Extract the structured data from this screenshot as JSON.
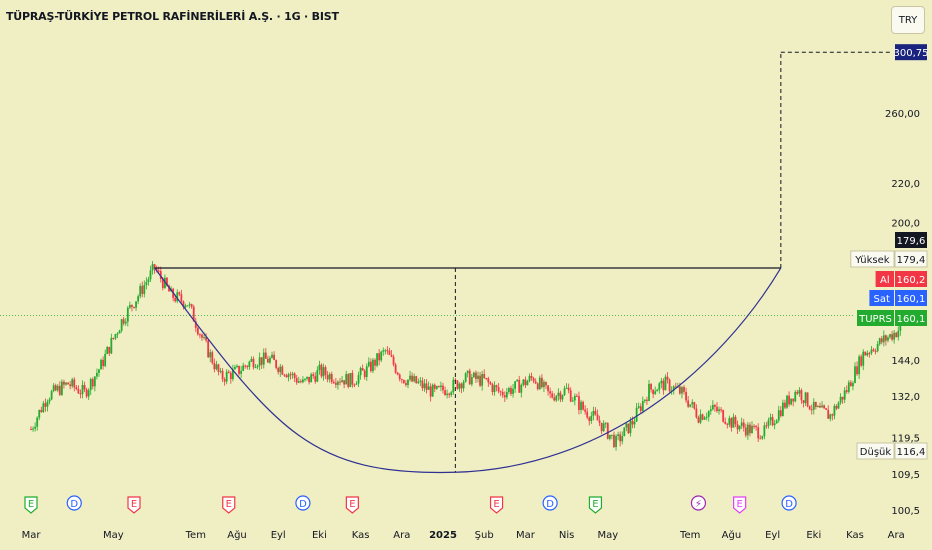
{
  "header": {
    "title": "TÜPRAŞ-TÜRKİYE PETROL RAFİNERİLERİ A.Ş. · 1G · BIST",
    "currency": "TRY"
  },
  "chart_data": {
    "type": "candlestick",
    "price_axis": {
      "scale": "log",
      "ticks": [
        "300,75",
        "260,00",
        "220,0",
        "200,0",
        "179,6",
        "179,4",
        "160,2",
        "160,1",
        "160,1",
        "144,0",
        "132,0",
        "119,5",
        "116,4",
        "109,5",
        "100,5"
      ],
      "tick_values": [
        260,
        220,
        200,
        144,
        132,
        119.5,
        109.5,
        100.5
      ],
      "tick_labels": [
        "260,00",
        "220,0",
        "200,0",
        "144,0",
        "132,0",
        "119,5",
        "109,5",
        "100,5"
      ]
    },
    "time_axis": {
      "labels": [
        "Mar",
        "May",
        "Tem",
        "Ağu",
        "Eyl",
        "Eki",
        "Kas",
        "Ara",
        "2025",
        "Şub",
        "Mar",
        "Nis",
        "May",
        "Tem",
        "Ağu",
        "Eyl",
        "Eki",
        "Kas",
        "Ara"
      ]
    },
    "price_labels": [
      {
        "label": "",
        "value": "300,75",
        "price": 300.75,
        "color": "#1a237e"
      },
      {
        "label": "",
        "value": "179,6",
        "price": 179.6,
        "color": "#131722"
      },
      {
        "label": "Yüksek",
        "value": "179,4",
        "price": 179.4,
        "color": "#f0eec3"
      },
      {
        "label": "Al",
        "value": "160,2",
        "price": 160.2,
        "color": "#f23645"
      },
      {
        "label": "Sat",
        "value": "160,1",
        "price": 160.1,
        "color": "#2962ff"
      },
      {
        "label": "TUPRS",
        "value": "160,1",
        "price": 160.1,
        "color": "#22ab2e"
      },
      {
        "label": "Düşük",
        "value": "116,4",
        "price": 116.4,
        "color": "#f0eec3"
      }
    ],
    "series_path": [
      {
        "m": 0,
        "p": 122
      },
      {
        "m": 0.4,
        "p": 132
      },
      {
        "m": 0.9,
        "p": 136
      },
      {
        "m": 1.3,
        "p": 133
      },
      {
        "m": 1.7,
        "p": 142
      },
      {
        "m": 2.2,
        "p": 158
      },
      {
        "m": 2.6,
        "p": 168
      },
      {
        "m": 3.0,
        "p": 179.4
      },
      {
        "m": 3.4,
        "p": 168
      },
      {
        "m": 3.8,
        "p": 165
      },
      {
        "m": 4.2,
        "p": 150
      },
      {
        "m": 4.6,
        "p": 138
      },
      {
        "m": 5.0,
        "p": 140
      },
      {
        "m": 5.4,
        "p": 144
      },
      {
        "m": 5.8,
        "p": 144
      },
      {
        "m": 6.2,
        "p": 140
      },
      {
        "m": 6.6,
        "p": 136
      },
      {
        "m": 7.0,
        "p": 140
      },
      {
        "m": 7.4,
        "p": 138
      },
      {
        "m": 7.8,
        "p": 137
      },
      {
        "m": 8.2,
        "p": 141
      },
      {
        "m": 8.6,
        "p": 147
      },
      {
        "m": 9.0,
        "p": 138
      },
      {
        "m": 9.4,
        "p": 136
      },
      {
        "m": 9.8,
        "p": 133
      },
      {
        "m": 10.2,
        "p": 135
      },
      {
        "m": 10.6,
        "p": 138
      },
      {
        "m": 11.0,
        "p": 137
      },
      {
        "m": 11.4,
        "p": 133
      },
      {
        "m": 11.8,
        "p": 135
      },
      {
        "m": 12.2,
        "p": 138
      },
      {
        "m": 12.6,
        "p": 132
      },
      {
        "m": 13.0,
        "p": 134
      },
      {
        "m": 13.4,
        "p": 128
      },
      {
        "m": 13.8,
        "p": 124
      },
      {
        "m": 14.2,
        "p": 118
      },
      {
        "m": 14.6,
        "p": 124
      },
      {
        "m": 15.0,
        "p": 134
      },
      {
        "m": 15.4,
        "p": 136
      },
      {
        "m": 15.8,
        "p": 133
      },
      {
        "m": 16.2,
        "p": 126
      },
      {
        "m": 16.6,
        "p": 128
      },
      {
        "m": 17.0,
        "p": 124
      },
      {
        "m": 17.4,
        "p": 122
      },
      {
        "m": 17.8,
        "p": 121
      },
      {
        "m": 18.2,
        "p": 128
      },
      {
        "m": 18.6,
        "p": 134
      },
      {
        "m": 19.0,
        "p": 128
      },
      {
        "m": 19.4,
        "p": 126
      },
      {
        "m": 19.8,
        "p": 134
      },
      {
        "m": 20.2,
        "p": 146
      },
      {
        "m": 20.6,
        "p": 150
      },
      {
        "m": 21.0,
        "p": 154
      },
      {
        "m": 21.4,
        "p": 160.1
      }
    ],
    "drawings": {
      "resistance_level": 179.4,
      "target_level": 300.75,
      "cup_low": 110.0
    },
    "events": [
      {
        "type": "E",
        "color": "#22ab2e"
      },
      {
        "type": "D",
        "color": "#2962ff"
      },
      {
        "type": "E",
        "color": "#f23645"
      },
      {
        "type": "E",
        "color": "#f23645"
      },
      {
        "type": "D",
        "color": "#2962ff"
      },
      {
        "type": "E",
        "color": "#f23645"
      },
      {
        "type": "E",
        "color": "#f23645"
      },
      {
        "type": "D",
        "color": "#2962ff"
      },
      {
        "type": "E",
        "color": "#22ab2e"
      },
      {
        "type": "⚡",
        "color": "#9c27b0"
      },
      {
        "type": "E",
        "color": "#e040fb"
      },
      {
        "type": "D",
        "color": "#2962ff"
      }
    ]
  },
  "colors": {
    "background": "#f0eec3",
    "up": "#22ab2e",
    "down": "#f23645",
    "text": "#131722"
  }
}
